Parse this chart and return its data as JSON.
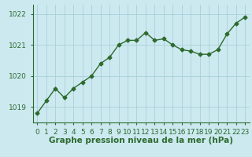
{
  "x": [
    0,
    1,
    2,
    3,
    4,
    5,
    6,
    7,
    8,
    9,
    10,
    11,
    12,
    13,
    14,
    15,
    16,
    17,
    18,
    19,
    20,
    21,
    22,
    23
  ],
  "y": [
    1018.8,
    1019.2,
    1019.6,
    1019.3,
    1019.6,
    1019.8,
    1020.0,
    1020.4,
    1020.6,
    1021.0,
    1021.15,
    1021.15,
    1021.4,
    1021.15,
    1021.2,
    1021.0,
    1020.85,
    1020.8,
    1020.7,
    1020.7,
    1020.85,
    1021.35,
    1021.7,
    1021.9
  ],
  "line_color": "#2d6a2d",
  "marker": "D",
  "marker_size": 2.5,
  "background_color": "#cce9f0",
  "grid_color": "#aacfda",
  "ylim": [
    1018.5,
    1022.3
  ],
  "yticks": [
    1019,
    1020,
    1021,
    1022
  ],
  "xlabel": "Graphe pression niveau de la mer (hPa)",
  "xlabel_fontsize": 7.5,
  "tick_fontsize": 6.5,
  "line_width": 1.0
}
